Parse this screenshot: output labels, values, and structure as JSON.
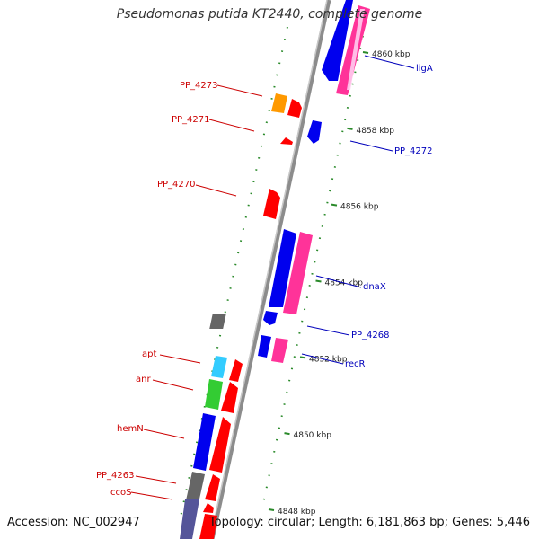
{
  "title": "Pseudomonas putida KT2440, complete genome",
  "footer": {
    "accession": "Accession: NC_002947",
    "summary": "Topology: circular; Length: 6,181,863 bp; Genes: 5,446"
  },
  "colors": {
    "backbone": "#8c8c8c",
    "tick": "#2a8a2a",
    "reverse_label": "#cc0000",
    "forward_label": "#0000bb",
    "gene": "#ff0000",
    "cds": "#0000ee",
    "trna": "#33ccff",
    "rrna": "#33cc33",
    "pseudo": "#ff9900",
    "misc": "#666666",
    "forward_gene": "#ff3399"
  },
  "kbp_ticks": [
    {
      "kbp": 4860,
      "label": "4860 kbp"
    },
    {
      "kbp": 4858,
      "label": "4858 kbp"
    },
    {
      "kbp": 4856,
      "label": "4856 kbp"
    },
    {
      "kbp": 4854,
      "label": "4854 kbp"
    },
    {
      "kbp": 4852,
      "label": "4852 kbp"
    },
    {
      "kbp": 4850,
      "label": "4850 kbp"
    },
    {
      "kbp": 4848,
      "label": "4848 kbp"
    }
  ],
  "reverse_labels": [
    "PP_4273",
    "PP_4271",
    "PP_4270",
    "apt",
    "anr",
    "hemN",
    "PP_4263",
    "ccoS"
  ],
  "forward_labels": [
    "ligA",
    "PP_4272",
    "dnaX",
    "PP_4268",
    "recR"
  ]
}
